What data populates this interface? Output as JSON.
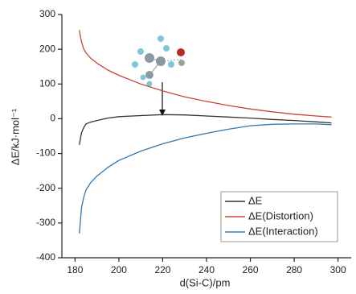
{
  "chart_data": {
    "type": "line",
    "x_label": "d(Si-C)/pm",
    "y_label": "ΔE/kJ·mol⁻¹",
    "x": [
      182,
      182.5,
      183,
      184,
      185,
      187,
      190,
      195,
      200,
      210,
      220,
      230,
      240,
      250,
      260,
      270,
      280,
      290,
      297
    ],
    "series": [
      {
        "name": "ΔE",
        "color": "#333333",
        "values": [
          -75,
          -55,
          -40,
          -25,
          -15,
          -10,
          -5,
          2,
          6,
          9,
          12,
          11,
          8,
          5,
          2,
          -2,
          -5,
          -9,
          -12
        ]
      },
      {
        "name": "ΔE(Distortion)",
        "color": "#c9453b",
        "values": [
          255,
          235,
          220,
          200,
          190,
          175,
          160,
          140,
          125,
          100,
          80,
          63,
          50,
          38,
          28,
          20,
          13,
          8,
          5
        ]
      },
      {
        "name": "ΔE(Interaction)",
        "color": "#2f78b4",
        "values": [
          -330,
          -290,
          -255,
          -225,
          -205,
          -185,
          -165,
          -140,
          -120,
          -93,
          -72,
          -55,
          -42,
          -30,
          -20,
          -16,
          -15,
          -15,
          -17
        ]
      }
    ],
    "xlim": [
      174,
      306
    ],
    "xticks": [
      180,
      200,
      220,
      240,
      260,
      280,
      300
    ],
    "ylim": [
      -400,
      300
    ],
    "yticks": [
      -400,
      -300,
      -200,
      -100,
      0,
      100,
      200,
      300
    ],
    "legend": "lower right"
  }
}
